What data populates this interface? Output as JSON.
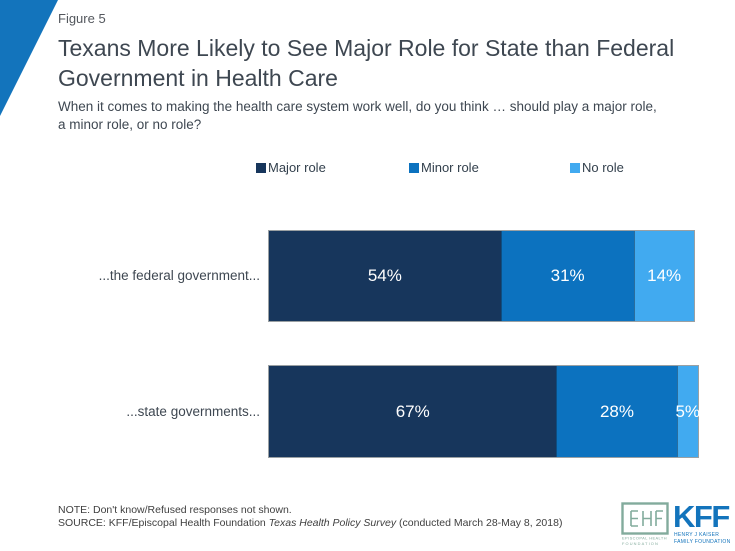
{
  "figure_label": "Figure 5",
  "title": "Texans More Likely to See Major Role for State than Federal Government in Health Care",
  "subtitle": "When it comes to making the health care system work well, do you think … should play a major role, a minor role, or no role?",
  "chart_data": {
    "type": "bar",
    "orientation": "horizontal",
    "stacked": true,
    "grid": false,
    "legend_position": "top",
    "xlim": [
      0,
      100
    ],
    "categories": [
      "...the federal government...",
      "...state governments..."
    ],
    "series": [
      {
        "name": "Major role",
        "color": "#17365c",
        "values": [
          54,
          67
        ]
      },
      {
        "name": "Minor role",
        "color": "#0c72bf",
        "values": [
          31,
          28
        ]
      },
      {
        "name": "No role",
        "color": "#41aaf0",
        "values": [
          14,
          5
        ]
      }
    ],
    "value_labels": [
      [
        "54%",
        "31%",
        "14%"
      ],
      [
        "67%",
        "28%",
        "5%"
      ]
    ]
  },
  "footer": {
    "note": "NOTE: Don't know/Refused responses not shown.",
    "source_prefix": "SOURCE: KFF/Episcopal Health Foundation ",
    "source_italic": "Texas Health Policy Survey",
    "source_suffix": " (conducted March 28-May 8, 2018)"
  },
  "logos": {
    "ehf_caption_line1": "EPISCOPAL HEALTH",
    "ehf_caption_line2": "FOUNDATION",
    "kff_acronym": "KFF",
    "kff_caption_line1": "HENRY J KAISER",
    "kff_caption_line2": "FAMILY FOUNDATION"
  },
  "colors": {
    "accent_blue": "#1374bc",
    "major_role": "#17365c",
    "minor_role": "#0c72bf",
    "no_role": "#41aaf0",
    "ehf_teal": "#82ab9c"
  }
}
